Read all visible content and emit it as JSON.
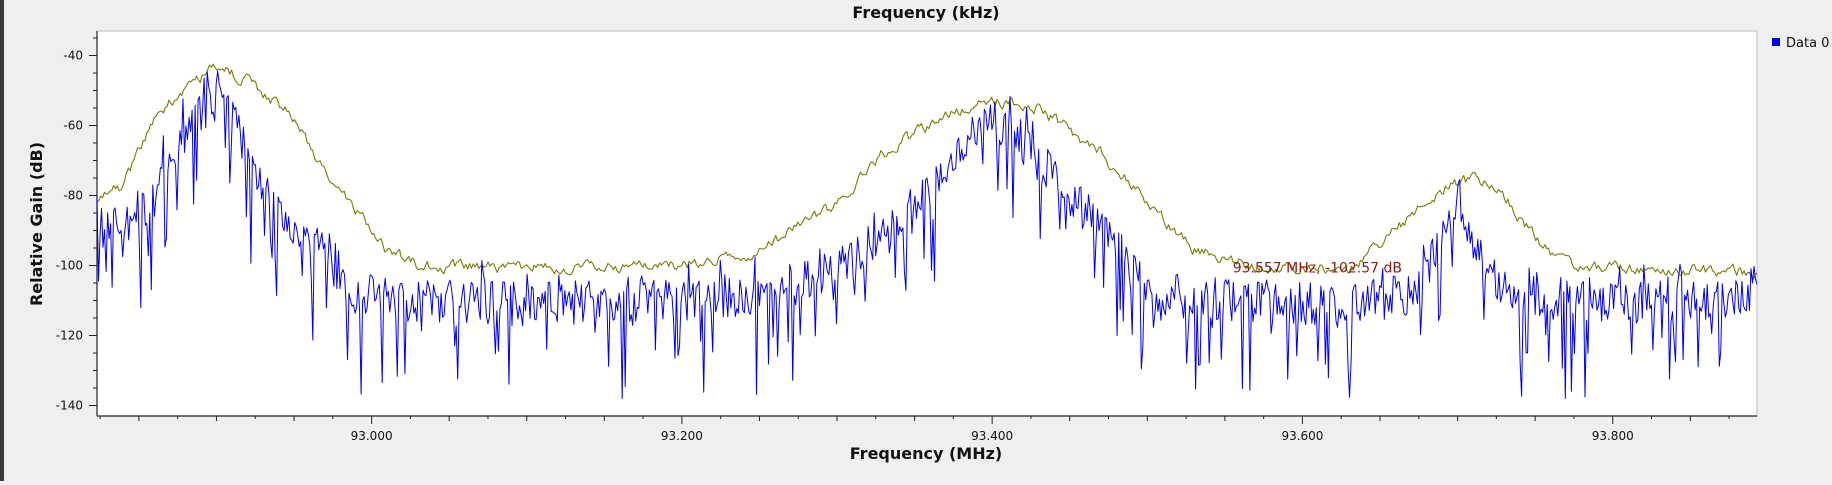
{
  "chart_data": {
    "type": "line",
    "title": "Frequency (kHz)",
    "xlabel": "Frequency (MHz)",
    "ylabel": "Relative Gain (dB)",
    "xlim": [
      92.823,
      93.893
    ],
    "ylim": [
      -143,
      -33
    ],
    "x_ticks": [
      93.0,
      93.2,
      93.4,
      93.6,
      93.8
    ],
    "x_tick_labels": [
      "93.000",
      "93.200",
      "93.400",
      "93.600",
      "93.800"
    ],
    "y_ticks": [
      -140,
      -120,
      -100,
      -80,
      -60,
      -40
    ],
    "y_tick_labels": [
      "-140",
      "-120",
      "-100",
      "-80",
      "-60",
      "-40"
    ],
    "grid": false,
    "legend": {
      "placement": "top-right",
      "entries": [
        "Data 0"
      ]
    },
    "annotation": {
      "text": "93.557 MHz, -102.57 dB",
      "x": 93.557,
      "y": -102.57
    },
    "series": [
      {
        "name": "Data 0",
        "color": "#0000ee",
        "style": "noisy",
        "jitter": 9,
        "envelope": [
          [
            92.823,
            -90
          ],
          [
            92.85,
            -88
          ],
          [
            92.87,
            -72
          ],
          [
            92.89,
            -56
          ],
          [
            92.9,
            -52
          ],
          [
            92.91,
            -58
          ],
          [
            92.93,
            -80
          ],
          [
            92.96,
            -92
          ],
          [
            92.99,
            -108
          ],
          [
            93.02,
            -110
          ],
          [
            93.1,
            -111
          ],
          [
            93.2,
            -110
          ],
          [
            93.25,
            -108
          ],
          [
            93.3,
            -102
          ],
          [
            93.35,
            -85
          ],
          [
            93.38,
            -66
          ],
          [
            93.4,
            -60
          ],
          [
            93.42,
            -65
          ],
          [
            93.45,
            -80
          ],
          [
            93.48,
            -95
          ],
          [
            93.5,
            -108
          ],
          [
            93.55,
            -110
          ],
          [
            93.63,
            -111
          ],
          [
            93.67,
            -108
          ],
          [
            93.69,
            -92
          ],
          [
            93.7,
            -80
          ],
          [
            93.71,
            -92
          ],
          [
            93.73,
            -108
          ],
          [
            93.8,
            -111
          ],
          [
            93.893,
            -110
          ]
        ]
      },
      {
        "name": "",
        "color": "#7d7a05",
        "style": "smooth",
        "jitter": 1.4,
        "envelope": [
          [
            92.823,
            -82
          ],
          [
            92.84,
            -77
          ],
          [
            92.86,
            -58
          ],
          [
            92.88,
            -49
          ],
          [
            92.9,
            -43
          ],
          [
            92.92,
            -47
          ],
          [
            92.95,
            -58
          ],
          [
            92.97,
            -74
          ],
          [
            92.99,
            -84
          ],
          [
            93.01,
            -96
          ],
          [
            93.03,
            -100
          ],
          [
            93.1,
            -101
          ],
          [
            93.2,
            -100
          ],
          [
            93.25,
            -96
          ],
          [
            93.3,
            -82
          ],
          [
            93.33,
            -68
          ],
          [
            93.37,
            -57
          ],
          [
            93.4,
            -53
          ],
          [
            93.43,
            -55
          ],
          [
            93.47,
            -68
          ],
          [
            93.5,
            -82
          ],
          [
            93.53,
            -95
          ],
          [
            93.57,
            -100
          ],
          [
            93.63,
            -101
          ],
          [
            93.66,
            -90
          ],
          [
            93.69,
            -78
          ],
          [
            93.71,
            -75
          ],
          [
            93.73,
            -80
          ],
          [
            93.75,
            -92
          ],
          [
            93.77,
            -100
          ],
          [
            93.893,
            -102
          ]
        ]
      }
    ]
  }
}
